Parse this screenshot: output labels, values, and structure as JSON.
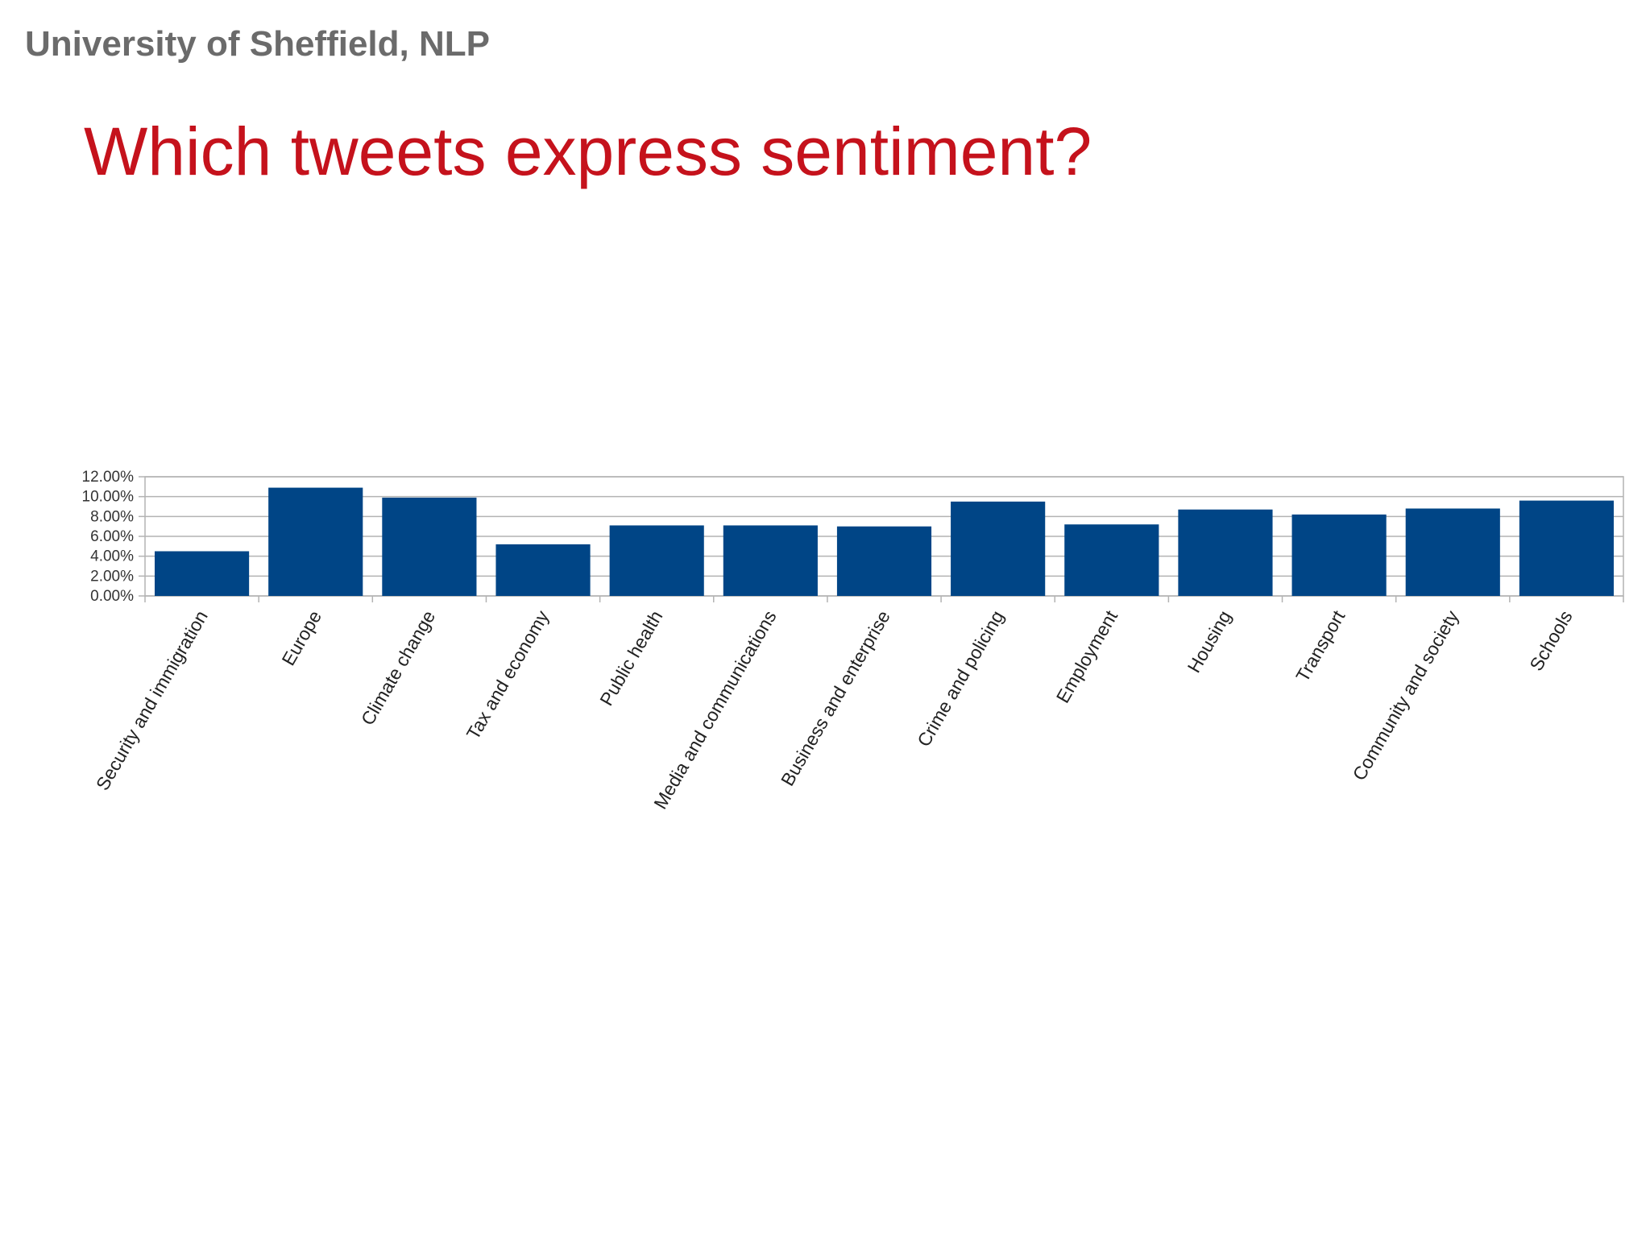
{
  "header": {
    "org": "University of Sheffield, NLP"
  },
  "slide": {
    "title": "Which tweets express sentiment?"
  },
  "colors": {
    "bar": "#004586",
    "title": "#c5121c",
    "header": "#6b6b6b",
    "grid": "#b3b3b3"
  },
  "chart_data": {
    "type": "bar",
    "categories": [
      "Security and immigration",
      "Europe",
      "Climate change",
      "Tax and economy",
      "Public health",
      "Media and communications",
      "Business and enterprise",
      "Crime and policing",
      "Employment",
      "Housing",
      "Transport",
      "Community and society",
      "Schools"
    ],
    "values": [
      4.5,
      10.9,
      9.9,
      5.2,
      7.1,
      7.1,
      7.0,
      9.5,
      7.2,
      8.7,
      8.2,
      8.8,
      9.6
    ],
    "ylim": [
      0,
      12
    ],
    "yticks": [
      "0.00%",
      "2.00%",
      "4.00%",
      "6.00%",
      "8.00%",
      "10.00%",
      "12.00%"
    ],
    "title": "",
    "xlabel": "",
    "ylabel": "",
    "grid": true,
    "legend": "none"
  }
}
